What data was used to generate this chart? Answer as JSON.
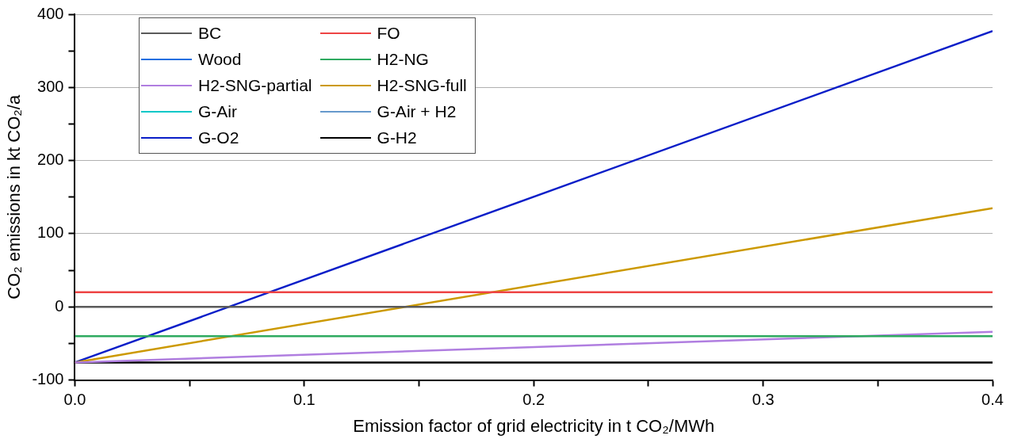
{
  "chart_data": {
    "type": "line",
    "xlabel": "Emission factor of grid electricity in t CO₂/MWh",
    "ylabel": "CO₂ emissions in kt CO₂/a",
    "x": [
      0,
      0.4
    ],
    "series": [
      {
        "name": "BC",
        "color": "#5a5a5a",
        "values": [
          0,
          0
        ]
      },
      {
        "name": "FO",
        "color": "#ee4444",
        "values": [
          20,
          20
        ]
      },
      {
        "name": "Wood",
        "color": "#1f6fe0",
        "values": [
          null,
          null
        ]
      },
      {
        "name": "H2-NG",
        "color": "#2eaa60",
        "values": [
          -40,
          -40
        ]
      },
      {
        "name": "H2-SNG-partial",
        "color": "#b07ee0",
        "values": [
          -76,
          -34
        ]
      },
      {
        "name": "H2-SNG-full",
        "color": "#cc9900",
        "values": [
          -76,
          135
        ]
      },
      {
        "name": "G-Air",
        "color": "#00c8c8",
        "values": [
          null,
          null
        ]
      },
      {
        "name": "G-Air + H2",
        "color": "#6699cc",
        "values": [
          null,
          null
        ]
      },
      {
        "name": "G-O2",
        "color": "#0a1ec8",
        "values": [
          -76,
          377
        ]
      },
      {
        "name": "G-H2",
        "color": "#000000",
        "values": [
          -76,
          -76
        ]
      }
    ],
    "xlim": [
      0,
      0.4
    ],
    "xticks": [
      {
        "value": 0,
        "label": "0.0"
      },
      {
        "value": 0.05,
        "label": null
      },
      {
        "value": 0.1,
        "label": "0.1"
      },
      {
        "value": 0.15,
        "label": null
      },
      {
        "value": 0.2,
        "label": "0.2"
      },
      {
        "value": 0.25,
        "label": null
      },
      {
        "value": 0.3,
        "label": "0.3"
      },
      {
        "value": 0.35,
        "label": null
      },
      {
        "value": 0.4,
        "label": "0.4"
      }
    ],
    "ylim": [
      -100,
      400
    ],
    "yticks": [
      -100,
      {
        "value": -50,
        "label": null
      },
      0,
      {
        "value": 50,
        "label": null
      },
      100,
      {
        "value": 150,
        "label": null
      },
      200,
      {
        "value": 250,
        "label": null
      },
      300,
      {
        "value": 350,
        "label": null
      },
      400
    ],
    "grid": "y",
    "legend": "top left",
    "marker": "none",
    "line_style": "solid"
  }
}
